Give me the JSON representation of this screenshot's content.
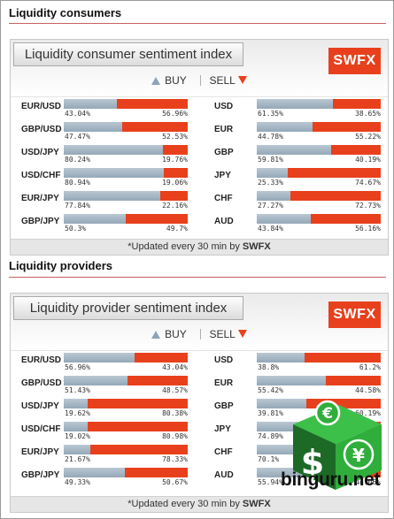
{
  "sections": [
    {
      "title": "Liquidity consumers",
      "index_title": "Liquidity consumer sentiment index",
      "brand": "SWFX",
      "legend": {
        "buy": "BUY",
        "sell": "SELL"
      },
      "left_rows": [
        {
          "pair": "EUR/USD",
          "buy": "43.04%",
          "sell": "56.96%",
          "buy_value": 43.04
        },
        {
          "pair": "GBP/USD",
          "buy": "47.47%",
          "sell": "52.53%",
          "buy_value": 47.47
        },
        {
          "pair": "USD/JPY",
          "buy": "80.24%",
          "sell": "19.76%",
          "buy_value": 80.24
        },
        {
          "pair": "USD/CHF",
          "buy": "80.94%",
          "sell": "19.06%",
          "buy_value": 80.94
        },
        {
          "pair": "EUR/JPY",
          "buy": "77.84%",
          "sell": "22.16%",
          "buy_value": 77.84
        },
        {
          "pair": "GBP/JPY",
          "buy": "50.3%",
          "sell": "49.7%",
          "buy_value": 50.3
        }
      ],
      "right_rows": [
        {
          "pair": "USD",
          "buy": "61.35%",
          "sell": "38.65%",
          "buy_value": 61.35
        },
        {
          "pair": "EUR",
          "buy": "44.78%",
          "sell": "55.22%",
          "buy_value": 44.78
        },
        {
          "pair": "GBP",
          "buy": "59.81%",
          "sell": "40.19%",
          "buy_value": 59.81
        },
        {
          "pair": "JPY",
          "buy": "25.33%",
          "sell": "74.67%",
          "buy_value": 25.33
        },
        {
          "pair": "CHF",
          "buy": "27.27%",
          "sell": "72.73%",
          "buy_value": 27.27
        },
        {
          "pair": "AUD",
          "buy": "43.84%",
          "sell": "56.16%",
          "buy_value": 43.84
        }
      ],
      "footer_prefix": "*Updated every 30 min by ",
      "footer_brand": "SWFX"
    },
    {
      "title": "Liquidity providers",
      "index_title": "Liquidity provider sentiment index",
      "brand": "SWFX",
      "legend": {
        "buy": "BUY",
        "sell": "SELL"
      },
      "left_rows": [
        {
          "pair": "EUR/USD",
          "buy": "56.96%",
          "sell": "43.04%",
          "buy_value": 56.96
        },
        {
          "pair": "GBP/USD",
          "buy": "51.43%",
          "sell": "48.57%",
          "buy_value": 51.43
        },
        {
          "pair": "USD/JPY",
          "buy": "19.62%",
          "sell": "80.38%",
          "buy_value": 19.62
        },
        {
          "pair": "USD/CHF",
          "buy": "19.02%",
          "sell": "80.98%",
          "buy_value": 19.02
        },
        {
          "pair": "EUR/JPY",
          "buy": "21.67%",
          "sell": "78.33%",
          "buy_value": 21.67
        },
        {
          "pair": "GBP/JPY",
          "buy": "49.33%",
          "sell": "50.67%",
          "buy_value": 49.33
        }
      ],
      "right_rows": [
        {
          "pair": "USD",
          "buy": "38.8%",
          "sell": "61.2%",
          "buy_value": 38.8
        },
        {
          "pair": "EUR",
          "buy": "55.42%",
          "sell": "44.58%",
          "buy_value": 55.42
        },
        {
          "pair": "GBP",
          "buy": "39.81%",
          "sell": "60.19%",
          "buy_value": 39.81
        },
        {
          "pair": "JPY",
          "buy": "74.89%",
          "sell": "25.11%",
          "buy_value": 74.89
        },
        {
          "pair": "CHF",
          "buy": "70.1%",
          "sell": "29.9%",
          "buy_value": 70.1
        },
        {
          "pair": "AUD",
          "buy": "55.94%",
          "sell": "44.06%",
          "buy_value": 55.94
        }
      ],
      "footer_prefix": "*Updated every 30 min by ",
      "footer_brand": "SWFX"
    }
  ],
  "watermark": {
    "text": "binguru.net",
    "icon": "currency-symbols-logo",
    "colors": {
      "green": "#2fae3c",
      "dark": "#1d6a27"
    }
  },
  "colors": {
    "buy": "#95a8b8",
    "sell": "#e8401c",
    "brand": "#e8401c",
    "rule": "#c86060"
  }
}
